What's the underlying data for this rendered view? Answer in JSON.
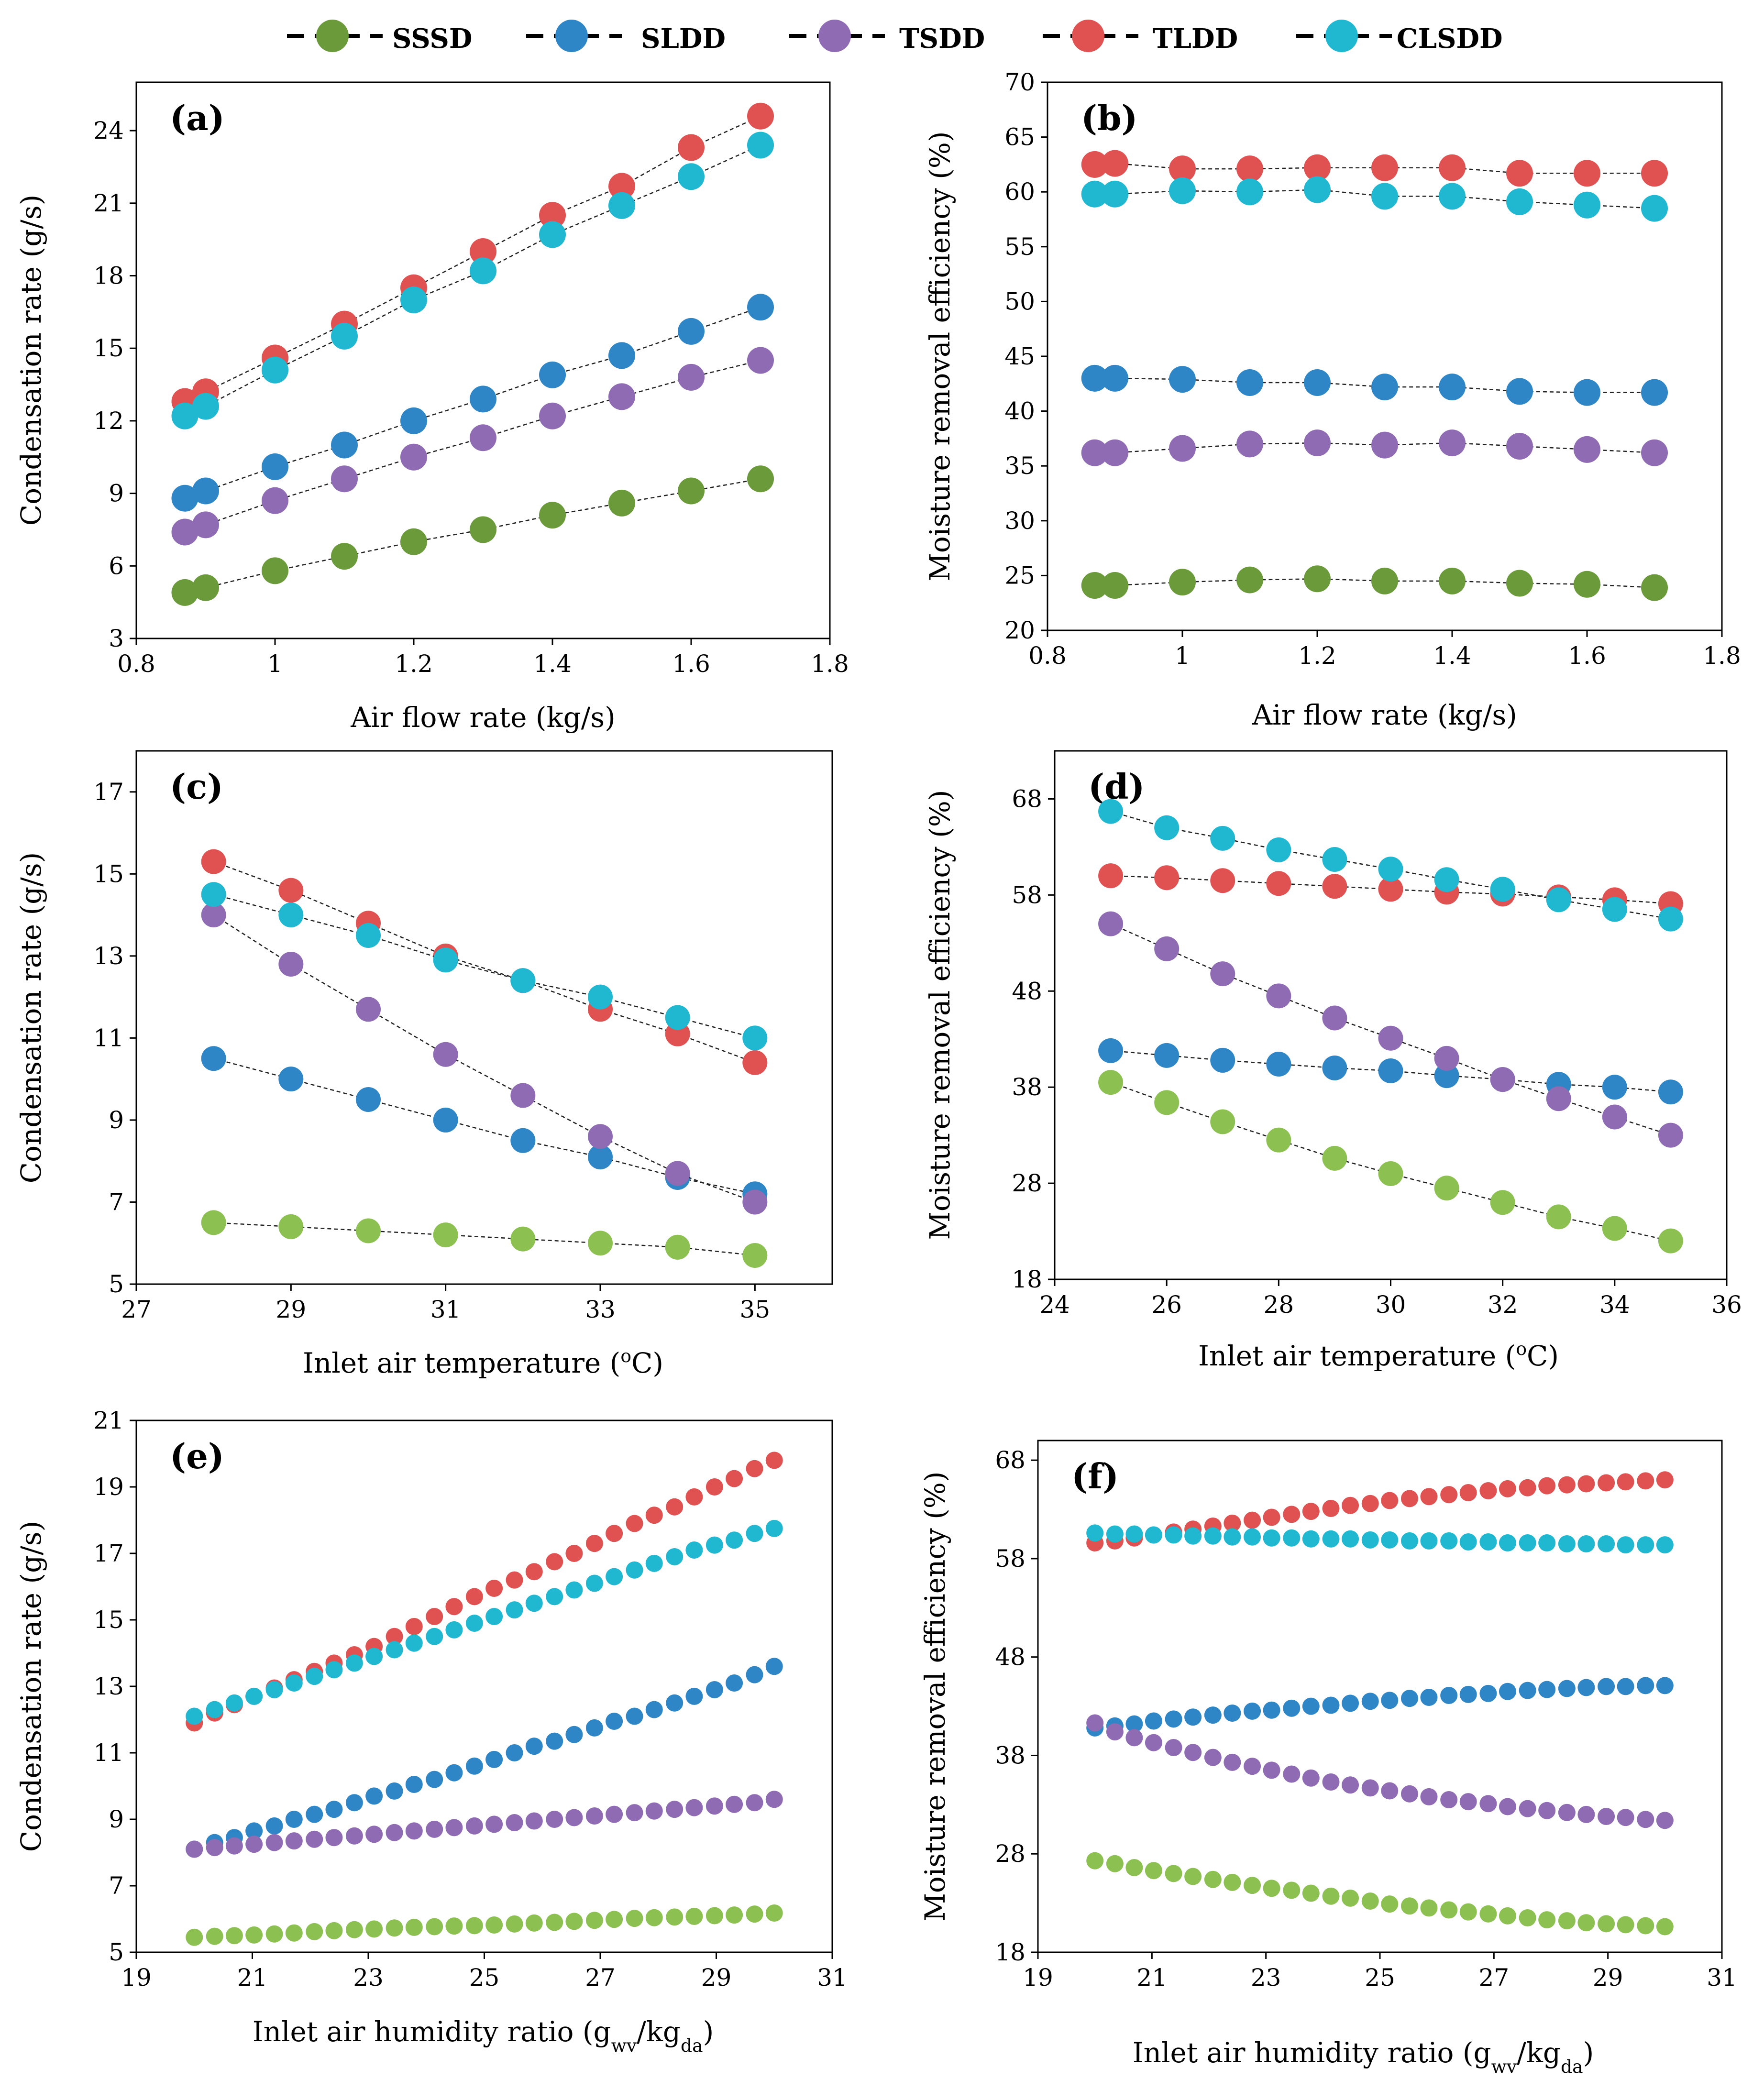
{
  "legend": {
    "series": [
      {
        "key": "SSSD",
        "label": "SSSD",
        "color": "#6b9a3a"
      },
      {
        "key": "SLDD",
        "label": "SLDD",
        "color": "#2e86c6"
      },
      {
        "key": "TSDD",
        "label": "TSDD",
        "color": "#8e6bb3"
      },
      {
        "key": "TLDD",
        "label": "TLDD",
        "color": "#e05252"
      },
      {
        "key": "CLSDD",
        "label": "CLSDD",
        "color": "#1fb8d0"
      }
    ]
  },
  "chart_data": [
    {
      "panel": "(a)",
      "type": "line",
      "xlabel": "Air flow rate (kg/s)",
      "ylabel": "Condensation rate (g/s)",
      "xlim": [
        0.8,
        1.8
      ],
      "ylim": [
        3,
        26
      ],
      "xticks": [
        0.8,
        1,
        1.2,
        1.4,
        1.6,
        1.8
      ],
      "xtick_labels": [
        "0.8",
        "1",
        "1.2",
        "1.4",
        "1.6",
        "1.8"
      ],
      "yticks": [
        3,
        6,
        9,
        12,
        15,
        18,
        21,
        24
      ],
      "ytick_labels": [
        "3",
        "6",
        "9",
        "12",
        "15",
        "18",
        "21",
        "24"
      ],
      "x": [
        0.87,
        0.9,
        1.0,
        1.1,
        1.2,
        1.3,
        1.4,
        1.5,
        1.6,
        1.7
      ],
      "series": [
        {
          "name": "SSSD",
          "color": "#6b9a3a",
          "values": [
            4.9,
            5.1,
            5.8,
            6.4,
            7.0,
            7.5,
            8.1,
            8.6,
            9.1,
            9.6
          ]
        },
        {
          "name": "SLDD",
          "color": "#2e86c6",
          "values": [
            8.8,
            9.1,
            10.1,
            11.0,
            12.0,
            12.9,
            13.9,
            14.7,
            15.7,
            16.7
          ]
        },
        {
          "name": "TSDD",
          "color": "#8e6bb3",
          "values": [
            7.4,
            7.7,
            8.7,
            9.6,
            10.5,
            11.3,
            12.2,
            13.0,
            13.8,
            14.5
          ]
        },
        {
          "name": "TLDD",
          "color": "#e05252",
          "values": [
            12.8,
            13.2,
            14.6,
            16.0,
            17.5,
            19.0,
            20.5,
            21.7,
            23.3,
            24.6
          ]
        },
        {
          "name": "CLSDD",
          "color": "#1fb8d0",
          "values": [
            12.2,
            12.6,
            14.1,
            15.5,
            17.0,
            18.2,
            19.7,
            20.9,
            22.1,
            23.4
          ]
        }
      ]
    },
    {
      "panel": "(b)",
      "type": "line",
      "xlabel": "Air flow rate (kg/s)",
      "ylabel": "Moisture removal efficiency (%)",
      "xlim": [
        0.8,
        1.8
      ],
      "ylim": [
        20,
        70
      ],
      "xticks": [
        0.8,
        1,
        1.2,
        1.4,
        1.6,
        1.8
      ],
      "xtick_labels": [
        "0.8",
        "1",
        "1.2",
        "1.4",
        "1.6",
        "1.8"
      ],
      "yticks": [
        20,
        25,
        30,
        35,
        40,
        45,
        50,
        55,
        60,
        65,
        70
      ],
      "ytick_labels": [
        "20",
        "25",
        "30",
        "35",
        "40",
        "45",
        "50",
        "55",
        "60",
        "65",
        "70"
      ],
      "x": [
        0.87,
        0.9,
        1.0,
        1.1,
        1.2,
        1.3,
        1.4,
        1.5,
        1.6,
        1.7
      ],
      "series": [
        {
          "name": "SSSD",
          "color": "#6b9a3a",
          "values": [
            24.1,
            24.1,
            24.4,
            24.6,
            24.7,
            24.5,
            24.5,
            24.3,
            24.2,
            23.9
          ]
        },
        {
          "name": "SLDD",
          "color": "#2e86c6",
          "values": [
            43.0,
            43.0,
            42.9,
            42.6,
            42.6,
            42.2,
            42.2,
            41.8,
            41.7,
            41.7
          ]
        },
        {
          "name": "TSDD",
          "color": "#8e6bb3",
          "values": [
            36.2,
            36.2,
            36.6,
            37.0,
            37.1,
            36.9,
            37.1,
            36.8,
            36.5,
            36.2
          ]
        },
        {
          "name": "TLDD",
          "color": "#e05252",
          "values": [
            62.5,
            62.6,
            62.1,
            62.1,
            62.2,
            62.2,
            62.2,
            61.7,
            61.7,
            61.7
          ]
        },
        {
          "name": "CLSDD",
          "color": "#1fb8d0",
          "values": [
            59.8,
            59.8,
            60.1,
            60.0,
            60.2,
            59.6,
            59.6,
            59.1,
            58.8,
            58.5
          ]
        }
      ]
    },
    {
      "panel": "(c)",
      "type": "line",
      "xlabel": "Inlet air temperature (oC)",
      "ylabel": "Condensation rate (g/s)",
      "xlim": [
        27,
        36
      ],
      "ylim": [
        5,
        18
      ],
      "xticks": [
        27,
        29,
        31,
        33,
        35
      ],
      "xtick_labels": [
        "27",
        "29",
        "31",
        "33",
        "35"
      ],
      "yticks": [
        5,
        7,
        9,
        11,
        13,
        15,
        17
      ],
      "ytick_labels": [
        "5",
        "7",
        "9",
        "11",
        "13",
        "15",
        "17"
      ],
      "x": [
        28,
        29,
        30,
        31,
        32,
        33,
        34,
        35
      ],
      "series": [
        {
          "name": "SSSD",
          "color": "#8cc152",
          "values": [
            6.5,
            6.4,
            6.3,
            6.2,
            6.1,
            6.0,
            5.9,
            5.7
          ]
        },
        {
          "name": "SLDD",
          "color": "#2e86c6",
          "values": [
            10.5,
            10.0,
            9.5,
            9.0,
            8.5,
            8.1,
            7.6,
            7.2
          ]
        },
        {
          "name": "TSDD",
          "color": "#8e6bb3",
          "values": [
            14.0,
            12.8,
            11.7,
            10.6,
            9.6,
            8.6,
            7.7,
            7.0
          ]
        },
        {
          "name": "TLDD",
          "color": "#e05252",
          "values": [
            15.3,
            14.6,
            13.8,
            13.0,
            12.4,
            11.7,
            11.1,
            10.4
          ]
        },
        {
          "name": "CLSDD",
          "color": "#1fb8d0",
          "values": [
            14.5,
            14.0,
            13.5,
            12.9,
            12.4,
            12.0,
            11.5,
            11.0
          ]
        }
      ]
    },
    {
      "panel": "(d)",
      "type": "line",
      "xlabel": "Inlet air temperature (oC)",
      "ylabel": "Moisture removal efficiency (%)",
      "xlim": [
        24,
        36
      ],
      "ylim": [
        18,
        73
      ],
      "xticks": [
        24,
        26,
        28,
        30,
        32,
        34,
        36
      ],
      "xtick_labels": [
        "24",
        "26",
        "28",
        "30",
        "32",
        "34",
        "36"
      ],
      "yticks": [
        18,
        28,
        38,
        48,
        58,
        68
      ],
      "ytick_labels": [
        "18",
        "28",
        "38",
        "48",
        "58",
        "68"
      ],
      "x": [
        25,
        26,
        27,
        28,
        29,
        30,
        31,
        32,
        33,
        34,
        35
      ],
      "series": [
        {
          "name": "SSSD",
          "color": "#8cc152",
          "values": [
            38.5,
            36.4,
            34.4,
            32.5,
            30.6,
            29.0,
            27.5,
            26.0,
            24.5,
            23.3,
            22.0
          ]
        },
        {
          "name": "SLDD",
          "color": "#2e86c6",
          "values": [
            41.8,
            41.3,
            40.8,
            40.4,
            40.0,
            39.7,
            39.2,
            38.8,
            38.3,
            38.0,
            37.5
          ]
        },
        {
          "name": "TSDD",
          "color": "#8e6bb3",
          "values": [
            55.0,
            52.4,
            49.8,
            47.5,
            45.2,
            43.1,
            41.0,
            38.8,
            36.8,
            34.9,
            33.0
          ]
        },
        {
          "name": "TLDD",
          "color": "#e05252",
          "values": [
            60.0,
            59.8,
            59.5,
            59.2,
            58.9,
            58.6,
            58.3,
            58.1,
            57.8,
            57.5,
            57.1
          ]
        },
        {
          "name": "CLSDD",
          "color": "#1fb8d0",
          "values": [
            66.7,
            65.0,
            63.9,
            62.7,
            61.7,
            60.7,
            59.6,
            58.6,
            57.5,
            56.5,
            55.5
          ]
        }
      ]
    },
    {
      "panel": "(e)",
      "type": "line",
      "xlabel": "Inlet air humidity ratio (gwv/kgda)",
      "ylabel": "Condensation rate (g/s)",
      "xlim": [
        19,
        31
      ],
      "ylim": [
        5,
        21
      ],
      "xticks": [
        19,
        21,
        23,
        25,
        27,
        29,
        31
      ],
      "xtick_labels": [
        "19",
        "21",
        "23",
        "25",
        "27",
        "29",
        "31"
      ],
      "yticks": [
        5,
        7,
        9,
        11,
        13,
        15,
        17,
        19,
        21
      ],
      "ytick_labels": [
        "5",
        "7",
        "9",
        "11",
        "13",
        "15",
        "17",
        "19",
        "21"
      ],
      "x": [
        20.0,
        20.35,
        20.69,
        21.03,
        21.38,
        21.72,
        22.07,
        22.41,
        22.76,
        23.1,
        23.45,
        23.79,
        24.14,
        24.48,
        24.83,
        25.17,
        25.52,
        25.86,
        26.21,
        26.55,
        26.9,
        27.24,
        27.59,
        27.93,
        28.28,
        28.62,
        28.97,
        29.31,
        29.66,
        30.0
      ],
      "series": [
        {
          "name": "SSSD",
          "color": "#8cc152",
          "values": [
            5.45,
            5.48,
            5.5,
            5.52,
            5.55,
            5.58,
            5.62,
            5.65,
            5.68,
            5.7,
            5.73,
            5.75,
            5.77,
            5.79,
            5.8,
            5.82,
            5.85,
            5.88,
            5.9,
            5.93,
            5.96,
            5.99,
            6.02,
            6.04,
            6.06,
            6.08,
            6.1,
            6.12,
            6.15,
            6.18
          ]
        },
        {
          "name": "SLDD",
          "color": "#2e86c6",
          "values": [
            8.1,
            8.3,
            8.45,
            8.65,
            8.8,
            9.0,
            9.15,
            9.3,
            9.5,
            9.7,
            9.85,
            10.05,
            10.2,
            10.4,
            10.6,
            10.8,
            11.0,
            11.2,
            11.35,
            11.55,
            11.75,
            11.95,
            12.1,
            12.3,
            12.5,
            12.7,
            12.9,
            13.1,
            13.35,
            13.6
          ]
        },
        {
          "name": "TSDD",
          "color": "#8e6bb3",
          "values": [
            8.1,
            8.15,
            8.2,
            8.25,
            8.3,
            8.35,
            8.4,
            8.45,
            8.5,
            8.55,
            8.6,
            8.65,
            8.7,
            8.75,
            8.8,
            8.85,
            8.9,
            8.95,
            9.0,
            9.05,
            9.1,
            9.15,
            9.2,
            9.25,
            9.3,
            9.35,
            9.4,
            9.45,
            9.5,
            9.6
          ]
        },
        {
          "name": "TLDD",
          "color": "#e05252",
          "values": [
            11.9,
            12.2,
            12.45,
            12.7,
            12.95,
            13.2,
            13.45,
            13.7,
            13.95,
            14.2,
            14.5,
            14.8,
            15.1,
            15.4,
            15.7,
            15.95,
            16.2,
            16.45,
            16.75,
            17.0,
            17.3,
            17.6,
            17.9,
            18.15,
            18.4,
            18.7,
            19.0,
            19.25,
            19.55,
            19.8
          ]
        },
        {
          "name": "CLSDD",
          "color": "#1fb8d0",
          "values": [
            12.1,
            12.3,
            12.5,
            12.7,
            12.9,
            13.1,
            13.3,
            13.5,
            13.7,
            13.9,
            14.1,
            14.3,
            14.5,
            14.7,
            14.9,
            15.1,
            15.3,
            15.5,
            15.7,
            15.9,
            16.1,
            16.3,
            16.5,
            16.7,
            16.9,
            17.1,
            17.25,
            17.4,
            17.6,
            17.75
          ]
        }
      ]
    },
    {
      "panel": "(f)",
      "type": "line",
      "xlabel": "Inlet air humidity ratio (gwv/kgda)",
      "ylabel": "Moisture removal efficiency (%)",
      "xlim": [
        19,
        31
      ],
      "ylim": [
        18,
        70
      ],
      "xticks": [
        19,
        21,
        23,
        25,
        27,
        29,
        31
      ],
      "xtick_labels": [
        "19",
        "21",
        "23",
        "25",
        "27",
        "29",
        "31"
      ],
      "yticks": [
        18,
        28,
        38,
        48,
        58,
        68
      ],
      "ytick_labels": [
        "18",
        "28",
        "38",
        "48",
        "58",
        "68"
      ],
      "x": [
        20.0,
        20.35,
        20.69,
        21.03,
        21.38,
        21.72,
        22.07,
        22.41,
        22.76,
        23.1,
        23.45,
        23.79,
        24.14,
        24.48,
        24.83,
        25.17,
        25.52,
        25.86,
        26.21,
        26.55,
        26.9,
        27.24,
        27.59,
        27.93,
        28.28,
        28.62,
        28.97,
        29.31,
        29.66,
        30.0
      ],
      "series": [
        {
          "name": "SSSD",
          "color": "#8cc152",
          "values": [
            27.3,
            27.0,
            26.6,
            26.3,
            26.0,
            25.7,
            25.4,
            25.1,
            24.8,
            24.5,
            24.3,
            24.0,
            23.7,
            23.5,
            23.2,
            22.9,
            22.7,
            22.5,
            22.3,
            22.1,
            21.9,
            21.7,
            21.5,
            21.3,
            21.2,
            21.0,
            20.9,
            20.8,
            20.7,
            20.6
          ]
        },
        {
          "name": "SLDD",
          "color": "#2e86c6",
          "values": [
            40.8,
            41.0,
            41.2,
            41.5,
            41.7,
            41.9,
            42.1,
            42.3,
            42.5,
            42.6,
            42.8,
            43.0,
            43.1,
            43.3,
            43.5,
            43.6,
            43.8,
            43.9,
            44.1,
            44.2,
            44.3,
            44.5,
            44.6,
            44.7,
            44.8,
            44.9,
            45.0,
            45.0,
            45.1,
            45.1
          ]
        },
        {
          "name": "TSDD",
          "color": "#8e6bb3",
          "values": [
            41.3,
            40.4,
            39.8,
            39.3,
            38.8,
            38.3,
            37.8,
            37.3,
            36.9,
            36.5,
            36.1,
            35.7,
            35.3,
            35.0,
            34.7,
            34.4,
            34.1,
            33.8,
            33.5,
            33.3,
            33.1,
            32.8,
            32.6,
            32.4,
            32.2,
            32.0,
            31.8,
            31.7,
            31.5,
            31.4
          ]
        },
        {
          "name": "TLDD",
          "color": "#e05252",
          "values": [
            59.6,
            59.8,
            60.1,
            60.4,
            60.7,
            61.0,
            61.3,
            61.6,
            61.9,
            62.2,
            62.5,
            62.8,
            63.1,
            63.4,
            63.6,
            63.9,
            64.1,
            64.3,
            64.5,
            64.7,
            64.9,
            65.1,
            65.2,
            65.4,
            65.5,
            65.6,
            65.7,
            65.8,
            65.9,
            66.0
          ]
        },
        {
          "name": "CLSDD",
          "color": "#1fb8d0",
          "values": [
            60.6,
            60.5,
            60.5,
            60.4,
            60.4,
            60.3,
            60.3,
            60.2,
            60.2,
            60.1,
            60.1,
            60.0,
            60.0,
            60.0,
            59.9,
            59.9,
            59.8,
            59.8,
            59.8,
            59.7,
            59.7,
            59.6,
            59.6,
            59.6,
            59.5,
            59.5,
            59.5,
            59.4,
            59.4,
            59.4
          ]
        }
      ]
    }
  ]
}
